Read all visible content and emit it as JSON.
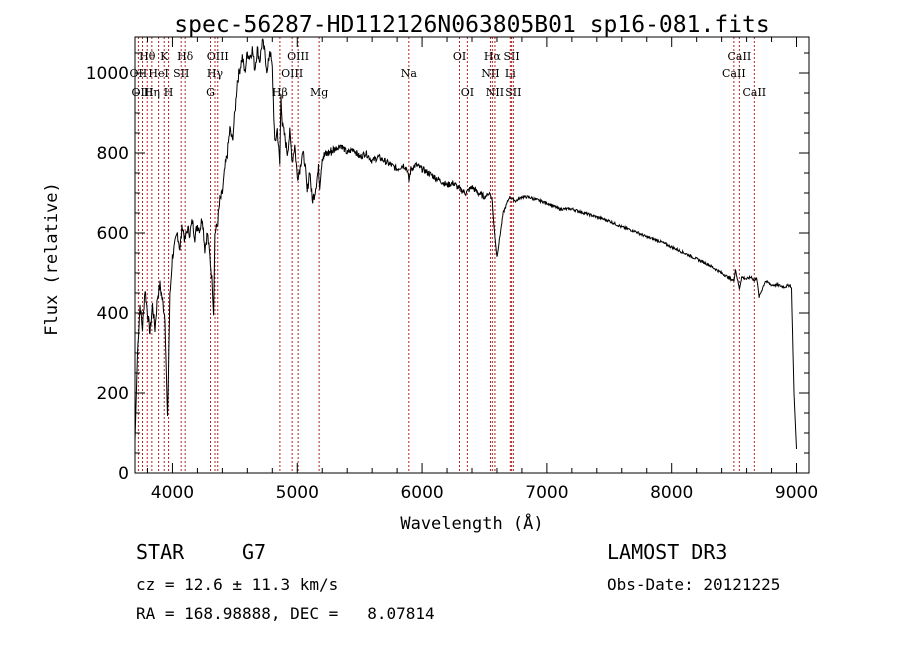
{
  "chart_data": {
    "type": "line",
    "title": "spec-56287-HD112126N063805B01_sp16-081.fits",
    "xlabel": "Wavelength (Å)",
    "ylabel": "Flux (relative)",
    "xlim": [
      3700,
      9100
    ],
    "ylim": [
      0,
      1090
    ],
    "xticks": [
      4000,
      5000,
      6000,
      7000,
      8000,
      9000
    ],
    "yticks": [
      0,
      200,
      400,
      600,
      800,
      1000
    ],
    "grid": false,
    "series": [
      {
        "name": "spectrum",
        "x": [
          3700,
          3720,
          3740,
          3760,
          3780,
          3800,
          3820,
          3840,
          3860,
          3880,
          3900,
          3920,
          3940,
          3960,
          3980,
          4000,
          4020,
          4040,
          4060,
          4080,
          4100,
          4120,
          4140,
          4160,
          4180,
          4200,
          4220,
          4240,
          4260,
          4280,
          4300,
          4320,
          4330,
          4340,
          4360,
          4380,
          4400,
          4420,
          4440,
          4460,
          4480,
          4500,
          4520,
          4540,
          4560,
          4580,
          4600,
          4620,
          4640,
          4660,
          4680,
          4700,
          4720,
          4740,
          4760,
          4780,
          4800,
          4820,
          4840,
          4860,
          4870,
          4880,
          4900,
          4920,
          4940,
          4960,
          4980,
          5000,
          5020,
          5040,
          5060,
          5080,
          5100,
          5120,
          5140,
          5160,
          5170,
          5180,
          5200,
          5250,
          5300,
          5350,
          5400,
          5450,
          5500,
          5550,
          5600,
          5650,
          5700,
          5750,
          5800,
          5850,
          5880,
          5895,
          5910,
          5950,
          6000,
          6050,
          6100,
          6150,
          6200,
          6250,
          6300,
          6350,
          6400,
          6450,
          6500,
          6540,
          6555,
          6563,
          6575,
          6600,
          6650,
          6700,
          6750,
          6800,
          6850,
          6900,
          6950,
          7000,
          7100,
          7200,
          7300,
          7400,
          7500,
          7600,
          7700,
          7800,
          7900,
          8000,
          8100,
          8200,
          8300,
          8400,
          8498,
          8510,
          8542,
          8560,
          8600,
          8640,
          8662,
          8680,
          8700,
          8750,
          8800,
          8850,
          8900,
          8950,
          8960,
          8980,
          9000
        ],
        "y": [
          80,
          300,
          420,
          360,
          460,
          400,
          350,
          420,
          360,
          440,
          470,
          430,
          390,
          130,
          440,
          540,
          570,
          600,
          560,
          620,
          580,
          610,
          600,
          630,
          590,
          620,
          610,
          640,
          560,
          600,
          540,
          470,
          400,
          600,
          620,
          680,
          700,
          760,
          800,
          860,
          830,
          900,
          980,
          1010,
          1040,
          1000,
          1050,
          1040,
          1060,
          1010,
          1060,
          1030,
          1080,
          1050,
          1000,
          1060,
          1010,
          820,
          860,
          770,
          950,
          870,
          840,
          800,
          850,
          780,
          820,
          740,
          760,
          800,
          780,
          700,
          760,
          680,
          700,
          740,
          760,
          720,
          790,
          800,
          810,
          820,
          800,
          810,
          790,
          800,
          780,
          790,
          780,
          770,
          760,
          770,
          760,
          730,
          760,
          770,
          760,
          750,
          740,
          730,
          720,
          725,
          710,
          700,
          715,
          700,
          690,
          700,
          690,
          680,
          620,
          540,
          650,
          690,
          680,
          690,
          690,
          685,
          680,
          675,
          660,
          660,
          650,
          640,
          630,
          615,
          605,
          590,
          580,
          565,
          550,
          535,
          520,
          500,
          480,
          510,
          460,
          490,
          485,
          490,
          480,
          490,
          440,
          480,
          470,
          470,
          465,
          470,
          460,
          200,
          60
        ]
      }
    ],
    "spectral_lines": [
      {
        "label": "Hθ",
        "x": 3798,
        "row": 1
      },
      {
        "label": "OII",
        "x": 3727,
        "row": 2
      },
      {
        "label": "OIII",
        "x": 3760,
        "row": 3
      },
      {
        "label": "K",
        "x": 3934,
        "row": 1
      },
      {
        "label": "HeI",
        "x": 3889,
        "row": 2
      },
      {
        "label": "Hη",
        "x": 3835,
        "row": 3
      },
      {
        "label": "SII",
        "x": 4070,
        "row": 2
      },
      {
        "label": "H",
        "x": 3969,
        "row": 3
      },
      {
        "label": "Hδ",
        "x": 4102,
        "row": 1
      },
      {
        "label": "OIII",
        "x": 4363,
        "row": 1
      },
      {
        "label": "Hγ",
        "x": 4341,
        "row": 2
      },
      {
        "label": "G",
        "x": 4305,
        "row": 3
      },
      {
        "label": "OIII",
        "x": 5007,
        "row": 1
      },
      {
        "label": "OIII",
        "x": 4959,
        "row": 2
      },
      {
        "label": "Hβ",
        "x": 4861,
        "row": 3
      },
      {
        "label": "Mg",
        "x": 5175,
        "row": 3
      },
      {
        "label": "Na",
        "x": 5894,
        "row": 2
      },
      {
        "label": "OI",
        "x": 6300,
        "row": 1
      },
      {
        "label": "OI",
        "x": 6363,
        "row": 3
      },
      {
        "label": "Hα",
        "x": 6563,
        "row": 1
      },
      {
        "label": "NII",
        "x": 6548,
        "row": 2
      },
      {
        "label": "NII",
        "x": 6584,
        "row": 3
      },
      {
        "label": "SII",
        "x": 6717,
        "row": 1
      },
      {
        "label": "Li",
        "x": 6707,
        "row": 2
      },
      {
        "label": "SII",
        "x": 6731,
        "row": 3
      },
      {
        "label": "CaII",
        "x": 8542,
        "row": 1
      },
      {
        "label": "CaII",
        "x": 8498,
        "row": 2
      },
      {
        "label": "CaII",
        "x": 8662,
        "row": 3
      }
    ]
  },
  "info": {
    "class_label": "STAR",
    "subclass": "G7",
    "survey": "LAMOST DR3",
    "velocity": "cz = 12.6 ± 11.3 km/s",
    "obs_date": "Obs-Date: 20121225",
    "coords": "RA = 168.98888, DEC =   8.07814"
  }
}
